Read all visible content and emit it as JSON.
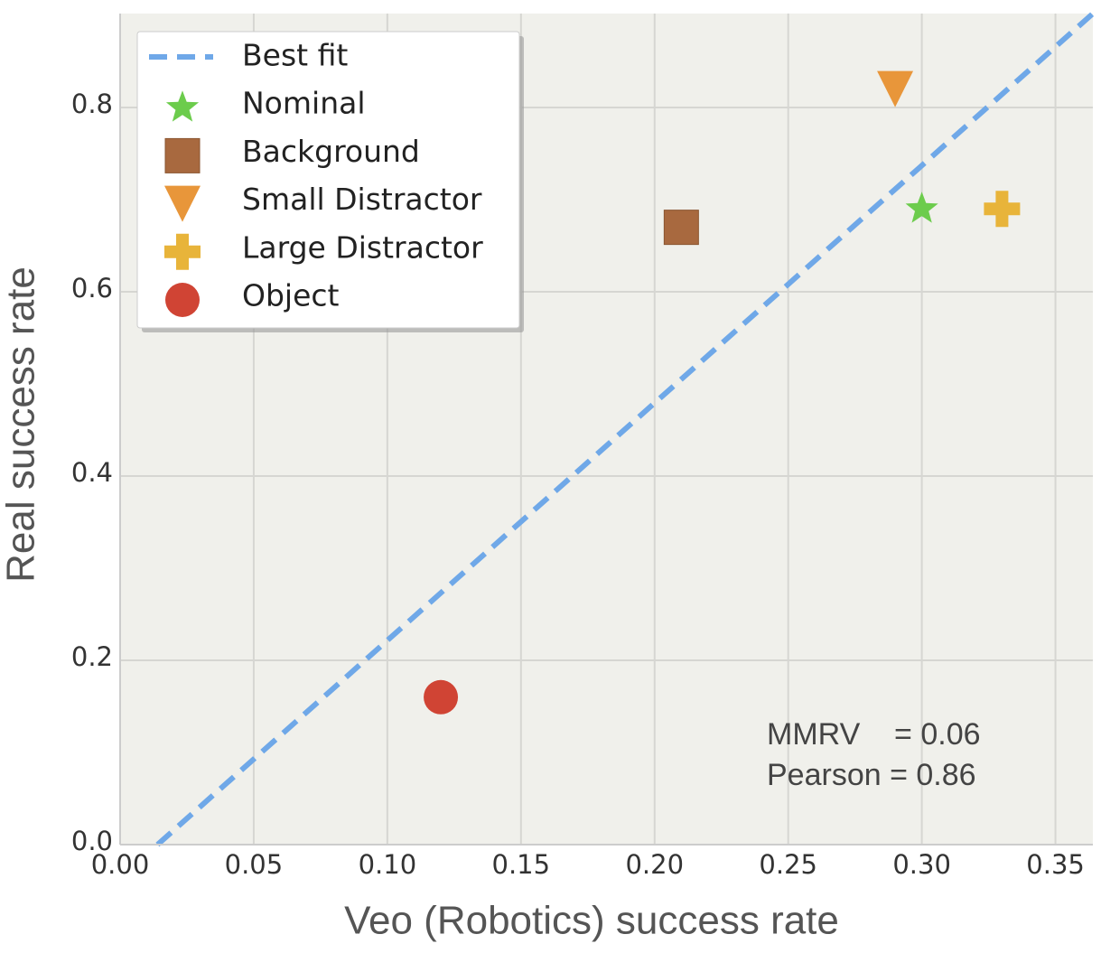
{
  "chart_data": {
    "type": "scatter",
    "xlabel": "Veo (Robotics) success rate",
    "ylabel": "Real success rate",
    "xlim": [
      0,
      0.364
    ],
    "ylim": [
      0,
      0.902
    ],
    "xticks": [
      {
        "value": 0,
        "label": "0.00"
      },
      0.05,
      {
        "value": 0.1,
        "label": "0.10"
      },
      0.15,
      {
        "value": 0.2,
        "label": "0.20"
      },
      0.25,
      {
        "value": 0.3,
        "label": "0.30"
      },
      0.35
    ],
    "yticks": [
      {
        "value": 0,
        "label": "0.0"
      },
      0.2,
      0.4,
      0.6,
      0.8
    ],
    "grid": true,
    "legend": "upper left",
    "series": [
      {
        "name": "Best fit",
        "type": "line",
        "color": "#6fa8e8",
        "x": [
          0.014,
          0.364
        ],
        "values": [
          0,
          0.902
        ]
      },
      {
        "name": "Nominal",
        "type": "scatter",
        "marker": "star",
        "color": "#6ccc4c",
        "x": [
          0.3
        ],
        "values": [
          0.69
        ]
      },
      {
        "name": "Background",
        "type": "scatter",
        "marker": "square",
        "color": "#a8693f",
        "x": [
          0.21
        ],
        "values": [
          0.67
        ]
      },
      {
        "name": "Small Distractor",
        "type": "scatter",
        "marker": "triangle",
        "color": "#e8963a",
        "x": [
          0.29
        ],
        "values": [
          0.82
        ]
      },
      {
        "name": "Large Distractor",
        "type": "scatter",
        "marker": "plus",
        "color": "#e8b43a",
        "x": [
          0.33
        ],
        "values": [
          0.69
        ]
      },
      {
        "name": "Object",
        "type": "scatter",
        "marker": "circle",
        "color": "#d04434",
        "x": [
          0.12
        ],
        "values": [
          0.16
        ]
      }
    ],
    "annotations": [
      "MMRV    = 0.06",
      "Pearson = 0.86"
    ]
  }
}
